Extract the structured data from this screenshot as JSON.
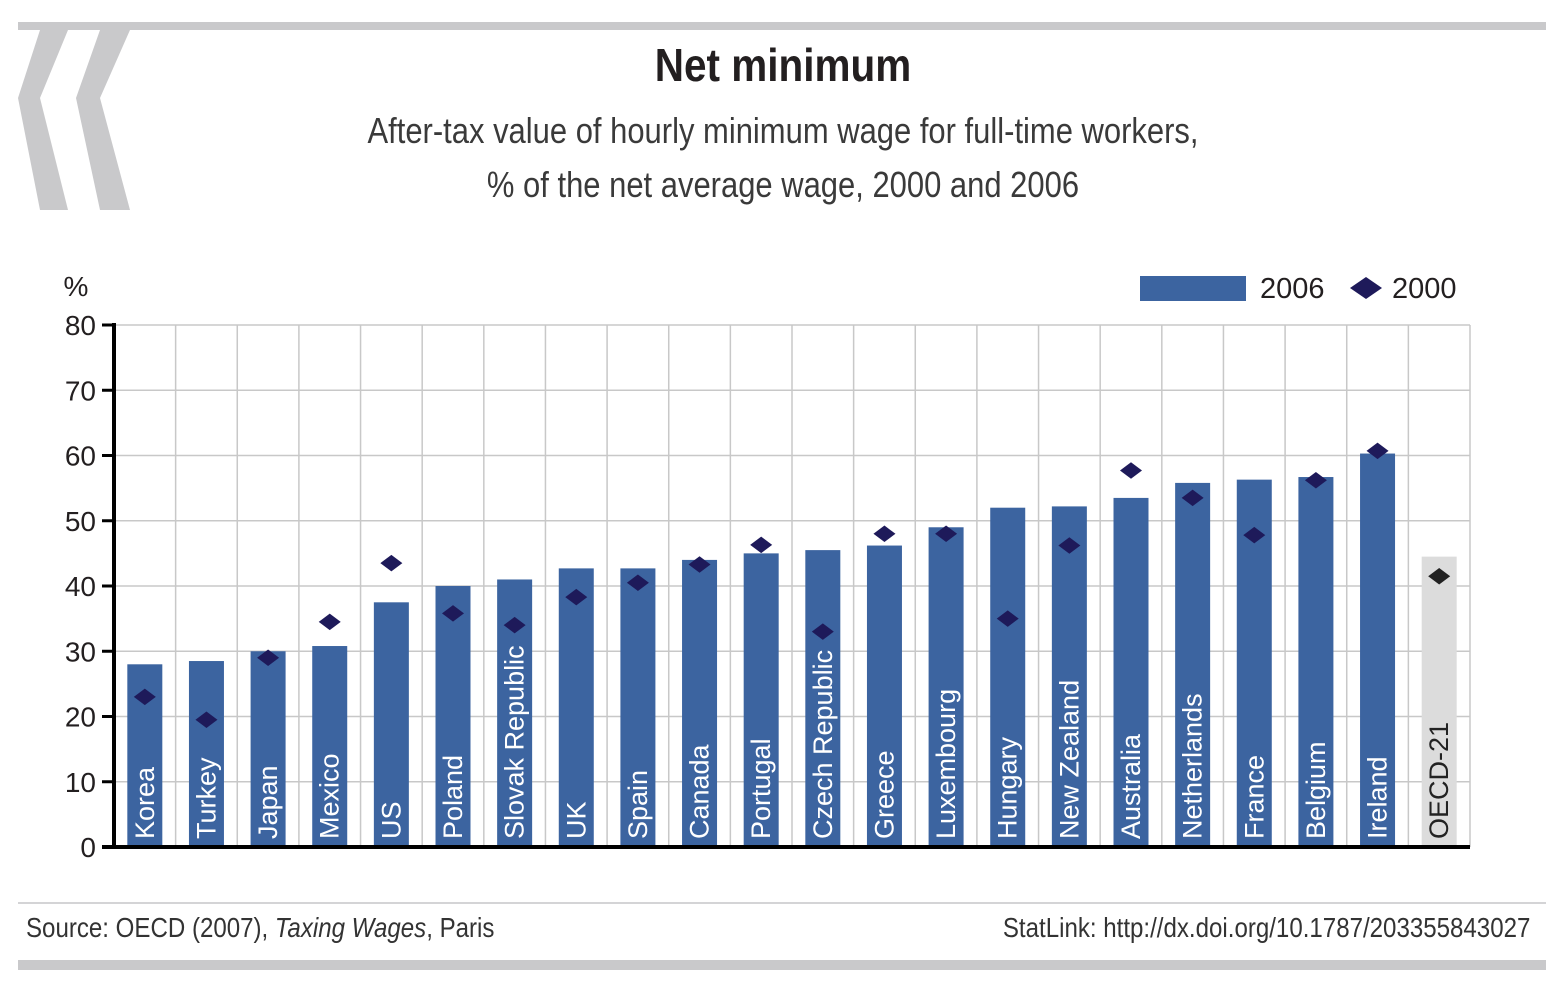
{
  "header": {
    "title": "Net minimum",
    "subtitle_line1": "After-tax value of hourly minimum wage for full-time workers,",
    "subtitle_line2": "% of the net average wage, 2000 and 2006"
  },
  "footer": {
    "source_prefix": "Source: OECD (2007), ",
    "source_title": "Taxing Wages",
    "source_suffix": ", Paris",
    "statlink": "StatLink: http://dx.doi.org/10.1787/203355843027"
  },
  "colors": {
    "bar": "#3c64a0",
    "bar_highlight": "#dcdcdc",
    "marker": "#1e1a5a",
    "marker_highlight": "#222222",
    "grid": "#c8c8c8",
    "rule": "#c9c9cb"
  },
  "chart_data": {
    "type": "bar",
    "ylabel": "%",
    "ylim": [
      0,
      80
    ],
    "yticks": [
      0,
      10,
      20,
      30,
      40,
      50,
      60,
      70,
      80
    ],
    "grid": true,
    "legend_position": "top-right",
    "categories": [
      "Korea",
      "Turkey",
      "Japan",
      "Mexico",
      "US",
      "Poland",
      "Slovak Republic",
      "UK",
      "Spain",
      "Canada",
      "Portugal",
      "Czech Republic",
      "Greece",
      "Luxembourg",
      "Hungary",
      "New Zealand",
      "Australia",
      "Netherlands",
      "France",
      "Belgium",
      "Ireland",
      "OECD-21"
    ],
    "highlight_category": "OECD-21",
    "series": [
      {
        "name": "2006",
        "kind": "bar",
        "values": [
          28,
          28.5,
          30,
          30.8,
          37.5,
          40,
          41,
          42.7,
          42.7,
          44,
          45,
          45.5,
          46.2,
          49,
          52,
          52.2,
          53.5,
          55.8,
          56.3,
          56.7,
          60.3,
          44.5
        ]
      },
      {
        "name": "2000",
        "kind": "marker",
        "values": [
          23,
          19.5,
          29,
          34.5,
          43.5,
          35.8,
          34,
          38.3,
          40.5,
          43.3,
          46.3,
          33,
          48,
          48,
          35,
          46.2,
          57.7,
          53.5,
          47.8,
          56.2,
          60.7,
          41.5
        ]
      }
    ]
  }
}
